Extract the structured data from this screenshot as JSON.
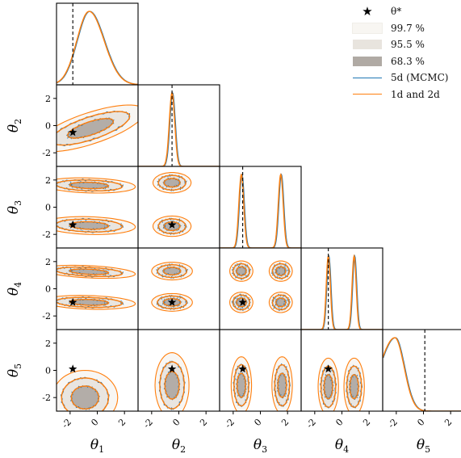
{
  "chart_data": {
    "type": "corner",
    "parameters": [
      "θ1",
      "θ2",
      "θ3",
      "θ4",
      "θ5"
    ],
    "axis_range": [
      -3,
      3
    ],
    "tick_values": [
      -2,
      0,
      2
    ],
    "true_values": [
      -1.8,
      -0.5,
      -1.3,
      -1.0,
      0.1
    ],
    "legend": {
      "star": "θ*",
      "levels": [
        "99.7 %",
        "95.5 %",
        "68.3 %"
      ],
      "series": [
        "5d (MCMC)",
        "1d and 2d"
      ]
    },
    "series_colors": {
      "5d (MCMC)": "#1f77b4",
      "1d and 2d": "#ff7f0e"
    },
    "level_fill_colors": [
      "#f8f6f2",
      "#e8e4de",
      "#b0aaa4"
    ],
    "marginals": [
      {
        "param": "θ1",
        "shape": "unimodal",
        "peak": -0.6,
        "width": 1.0,
        "skew": 0.2
      },
      {
        "param": "θ2",
        "shape": "unimodal",
        "peak": -0.5,
        "width": 0.2
      },
      {
        "param": "θ3",
        "shape": "bimodal",
        "peaks": [
          -1.4,
          1.5
        ],
        "width": 0.18
      },
      {
        "param": "θ4",
        "shape": "bimodal",
        "peaks": [
          -1.0,
          0.9
        ],
        "width": 0.15
      },
      {
        "param": "θ5",
        "shape": "unimodal",
        "peak": -2.1,
        "width": 0.9,
        "skew": -0.5
      }
    ]
  }
}
